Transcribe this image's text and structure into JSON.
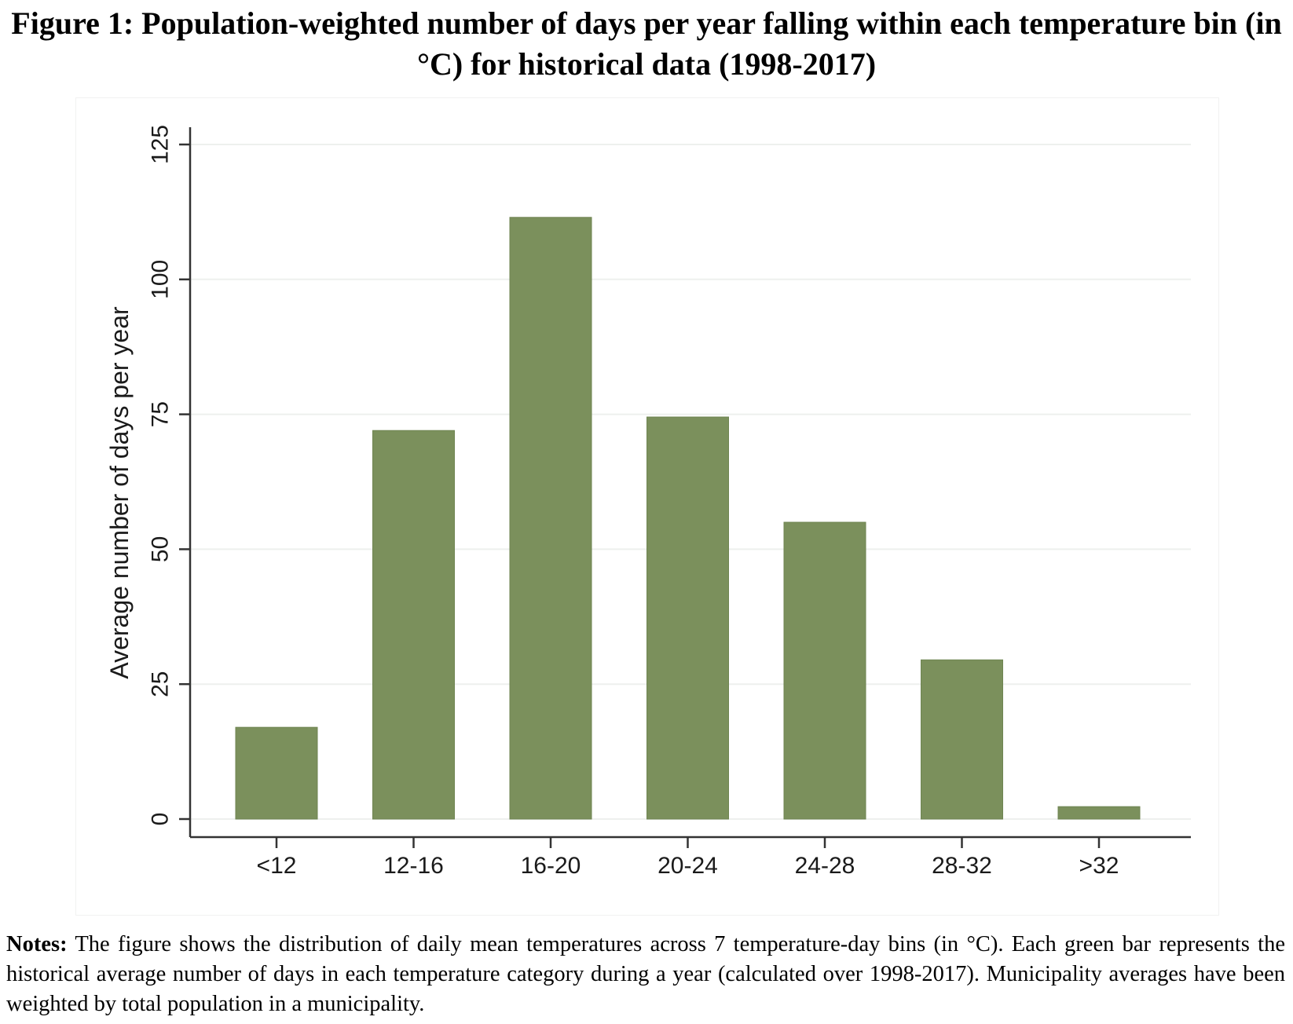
{
  "figure": {
    "title": "Figure 1: Population-weighted number of days per year falling within each temperature bin (in °C) for historical data (1998-2017)"
  },
  "notes": {
    "label": "Notes:",
    "text": "The figure shows the distribution of daily mean temperatures across 7 temperature-day bins (in °C). Each green bar represents the historical average number of days in each temperature category during a year (calculated over 1998-2017). Municipality averages have been weighted by total population in a municipality."
  },
  "chart_data": {
    "type": "bar",
    "categories": [
      "<12",
      "12-16",
      "16-20",
      "20-24",
      "24-28",
      "28-32",
      ">32"
    ],
    "values": [
      17,
      72,
      111.5,
      74.5,
      55,
      29.5,
      2.3
    ],
    "xlabel": "",
    "ylabel": "Average number of days per year",
    "ylim": [
      0,
      125
    ],
    "yticks": [
      0,
      25,
      50,
      75,
      100,
      125
    ],
    "grid": true,
    "legend": "none",
    "bar_color": "#7b905c",
    "grid_color": "#eef0ee"
  }
}
